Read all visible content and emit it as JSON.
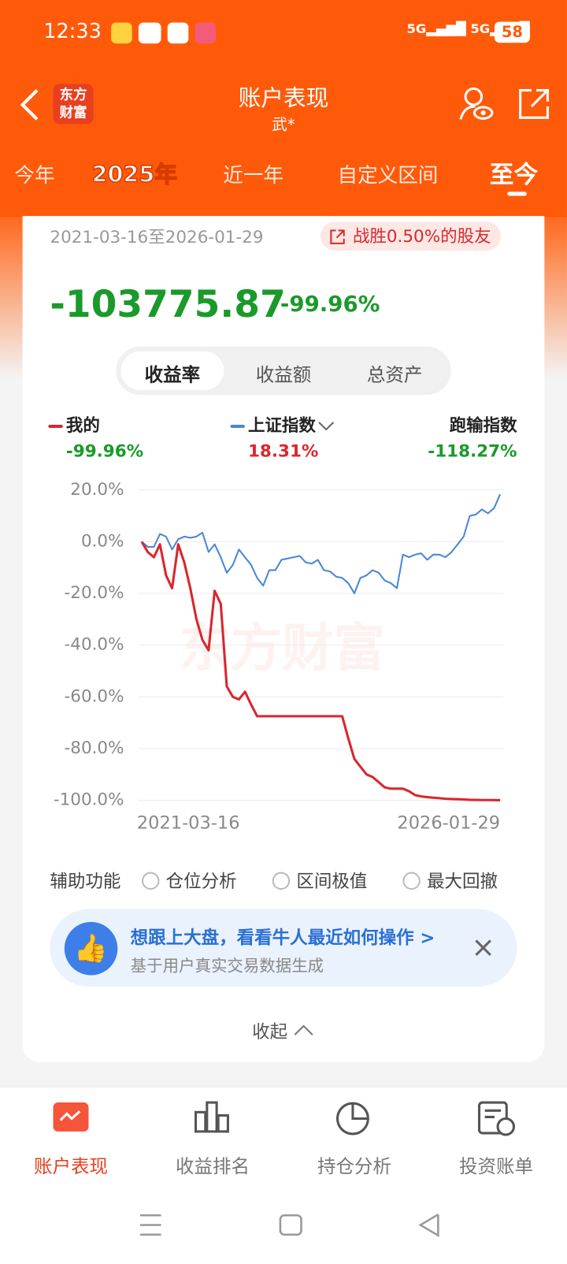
{
  "status_bar": {
    "time": "12:33",
    "battery": "58"
  },
  "header": {
    "logo_lines": [
      "东方",
      "财富"
    ],
    "title": "账户表现",
    "subtitle": "武*"
  },
  "tabs": [
    "今年",
    "2025年",
    "近一年",
    "自定义区间",
    "至今"
  ],
  "summary": {
    "period": "2021-03-16至2026-01-29",
    "badge": "战胜0.50%的股友",
    "amount": "-103775.87",
    "rate": "-99.96%"
  },
  "segments": [
    "收益率",
    "收益额",
    "总资产"
  ],
  "chart_data": {
    "type": "line",
    "watermark": "东方财富",
    "categories": [
      "2021-03-16",
      null,
      null,
      null,
      null,
      null,
      null,
      null,
      null,
      null,
      null,
      null,
      null,
      null,
      null,
      null,
      null,
      null,
      null,
      null,
      null,
      null,
      null,
      null,
      null,
      null,
      null,
      null,
      null,
      null,
      null,
      null,
      null,
      null,
      null,
      null,
      null,
      null,
      null,
      null,
      null,
      null,
      null,
      null,
      null,
      null,
      null,
      null,
      null,
      null,
      null,
      null,
      null,
      null,
      null,
      null,
      null,
      null,
      null,
      "2026-01-29"
    ],
    "series": [
      {
        "name": "我的",
        "color": "#d9272e",
        "legend_label": "-99.96%",
        "values": [
          0,
          -4,
          -6,
          -1,
          -13,
          -18,
          -1,
          -8,
          -18,
          -30,
          -38,
          -42,
          -19,
          -24,
          -56,
          -60,
          -61,
          -58,
          -63,
          -67.5,
          -67.5,
          -67.5,
          -67.5,
          -67.5,
          -67.5,
          -67.5,
          -67.5,
          -67.5,
          -67.5,
          -67.5,
          -67.5,
          -67.5,
          -67.5,
          -67.5,
          -76,
          -84,
          -87,
          -90,
          -91,
          -93,
          -95,
          -95.5,
          -95.5,
          -95.5,
          -96.5,
          -98,
          -98.5,
          -98.8,
          -99,
          -99.2,
          -99.4,
          -99.5,
          -99.6,
          -99.7,
          -99.8,
          -99.85,
          -99.9,
          -99.9,
          -99.93,
          -99.96
        ]
      },
      {
        "name": "上证指数",
        "color": "#4a86d6",
        "legend_label": "18.31%",
        "values": [
          0,
          -2,
          -2,
          3,
          2,
          -3,
          1,
          2,
          1.5,
          2,
          3.5,
          -4,
          -1,
          -6,
          -12,
          -9,
          -3,
          -6,
          -9,
          -14,
          -17,
          -11,
          -11,
          -7,
          -6.5,
          -6,
          -5.5,
          -8,
          -8.5,
          -7,
          -11,
          -11.5,
          -13.5,
          -14,
          -16,
          -20,
          -14,
          -13,
          -11,
          -12,
          -15,
          -16,
          -18,
          -5,
          -6,
          -5,
          -4.5,
          -7,
          -5,
          -5,
          -6,
          -4,
          -1,
          2,
          10,
          10.5,
          12.5,
          11,
          13,
          18.31
        ]
      }
    ],
    "excess": {
      "name": "跑输指数",
      "label": "-118.27%"
    },
    "ylim": [
      -100,
      20
    ],
    "yticks": [
      {
        "value": 20,
        "label": "20.0%"
      },
      {
        "value": 0,
        "label": "0.0%"
      },
      {
        "value": -20,
        "label": "-20.0%"
      },
      {
        "value": -40,
        "label": "-40.0%"
      },
      {
        "value": -60,
        "label": "-60.0%"
      },
      {
        "value": -80,
        "label": "-80.0%"
      },
      {
        "value": -100,
        "label": "-100.0%"
      }
    ],
    "grid": true
  },
  "aux": {
    "label": "辅助功能",
    "options": [
      "仓位分析",
      "区间极值",
      "最大回撤"
    ]
  },
  "banner": {
    "title": "想跟上大盘，看看牛人最近如何操作 >",
    "subtitle": "基于用户真实交易数据生成"
  },
  "collapse": "收起",
  "nav": [
    "账户表现",
    "收益排名",
    "持仓分析",
    "投资账单"
  ]
}
